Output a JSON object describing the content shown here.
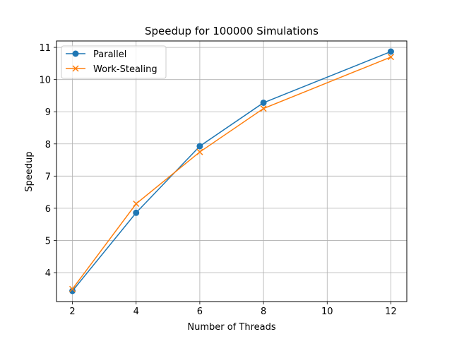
{
  "chart_data": {
    "type": "line",
    "title": "Speedup for 100000 Simulations",
    "xlabel": "Number of Threads",
    "ylabel": "Speedup",
    "xlim": [
      1.5,
      12.5
    ],
    "ylim": [
      3.1,
      11.2
    ],
    "xticks": [
      2,
      4,
      6,
      8,
      10,
      12
    ],
    "yticks": [
      4,
      5,
      6,
      7,
      8,
      9,
      10,
      11
    ],
    "grid": true,
    "legend_position": "top-left",
    "x": [
      2,
      4,
      6,
      8,
      12
    ],
    "series": [
      {
        "name": "Parallel",
        "color": "#1f77b4",
        "marker": "circle",
        "values": [
          3.43,
          5.86,
          7.93,
          9.28,
          10.87
        ]
      },
      {
        "name": "Work-Stealing",
        "color": "#ff7f0e",
        "marker": "x",
        "values": [
          3.49,
          6.14,
          7.75,
          9.1,
          10.7
        ]
      }
    ]
  }
}
